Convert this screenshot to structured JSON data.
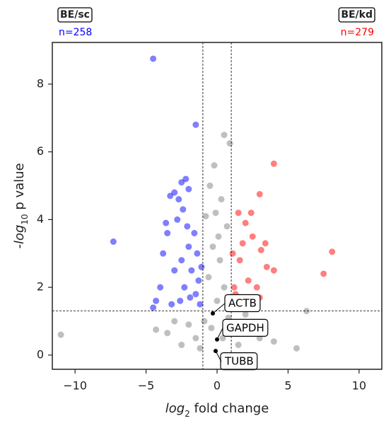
{
  "chart_data": {
    "type": "scatter",
    "xlabel": [
      "log",
      "2",
      " fold change"
    ],
    "ylabel": [
      "-log",
      "10",
      " p value"
    ],
    "xlim": [
      -11.6,
      11.6
    ],
    "ylim": [
      -0.42,
      9.23
    ],
    "xticks": [
      {
        "value": -10,
        "label": "−10"
      },
      {
        "value": -5,
        "label": "−5"
      },
      0,
      5,
      10
    ],
    "yticks": [
      0,
      2,
      4,
      6,
      8
    ],
    "vlines": [
      -1,
      1
    ],
    "hline": 1.3,
    "groups": [
      {
        "label": "BE/sc",
        "count_label": "n=258",
        "color": "#0000ff"
      },
      {
        "label": "BE/kd",
        "count_label": "n=279",
        "color": "#ff0000"
      }
    ],
    "series": [
      {
        "color": "#808080",
        "x": [
          0.5,
          0.9,
          -0.2,
          -0.5,
          0.3,
          -0.8,
          0.7,
          -0.3,
          0.2,
          -0.6,
          0.5,
          0.0,
          -0.9,
          0.8,
          -2.0,
          2.5,
          -4.3,
          -3.5,
          4.0,
          5.6,
          6.3,
          -11.0,
          -2.5,
          3.0,
          -1.5,
          1.5,
          -0.4,
          0.4,
          1.0,
          -1.2,
          2.0,
          -3.0,
          0.1,
          -0.1
        ],
        "y": [
          6.5,
          6.25,
          5.6,
          5.0,
          4.6,
          4.1,
          3.8,
          3.2,
          2.8,
          2.3,
          2.0,
          1.6,
          1.0,
          1.1,
          0.9,
          0.8,
          0.75,
          0.65,
          0.4,
          0.2,
          1.3,
          0.6,
          0.3,
          0.5,
          0.5,
          0.3,
          0.8,
          0.5,
          0.9,
          0.2,
          1.2,
          1.0,
          3.5,
          4.2
        ]
      },
      {
        "color": "#0000ff",
        "x": [
          -4.5,
          -1.5,
          -7.3,
          -2.2,
          -2.5,
          -3.0,
          -3.3,
          -2.0,
          -2.7,
          -2.4,
          -2.8,
          -3.5,
          -3.8,
          -4.0,
          -4.5,
          -4.3,
          -3.2,
          -2.5,
          -2.0,
          -1.8,
          -1.5,
          -1.3,
          -1.6,
          -2.3,
          -3.0,
          -2.6,
          -1.2,
          -1.4,
          -2.1,
          -3.6,
          -1.9,
          -1.1
        ],
        "y": [
          8.75,
          6.8,
          3.35,
          5.2,
          5.1,
          4.8,
          4.7,
          4.9,
          4.6,
          4.3,
          4.0,
          3.6,
          3.0,
          2.0,
          1.4,
          1.6,
          1.5,
          2.8,
          3.2,
          2.5,
          1.8,
          2.2,
          3.6,
          2.0,
          2.5,
          1.6,
          1.5,
          3.0,
          3.8,
          3.9,
          1.7,
          2.6
        ]
      },
      {
        "color": "#ff0000",
        "x": [
          4.0,
          3.0,
          8.1,
          7.5,
          1.5,
          2.0,
          2.5,
          3.1,
          3.5,
          4.0,
          1.2,
          1.6,
          2.2,
          2.8,
          1.4,
          3.0,
          1.8,
          2.4,
          1.1,
          1.3,
          2.0,
          3.4
        ],
        "y": [
          5.65,
          4.75,
          3.05,
          2.4,
          4.2,
          3.9,
          3.5,
          3.1,
          2.6,
          2.5,
          2.0,
          2.8,
          2.2,
          2.0,
          1.5,
          1.7,
          3.3,
          4.2,
          3.0,
          1.8,
          1.6,
          3.3
        ]
      }
    ],
    "genes": [
      {
        "label": "ACTB",
        "x": -0.3,
        "y": 1.23
      },
      {
        "label": "GAPDH",
        "x": 0.0,
        "y": 0.46
      },
      {
        "label": "TUBB",
        "x": -0.1,
        "y": 0.12
      }
    ]
  }
}
